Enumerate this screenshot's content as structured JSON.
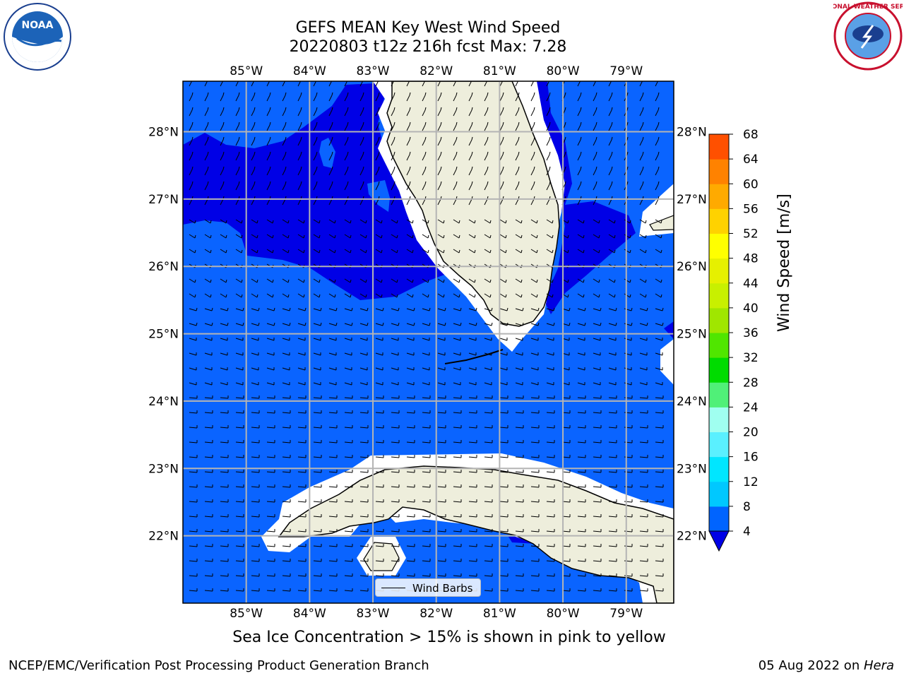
{
  "title": {
    "line1": "GEFS MEAN Key West Wind Speed",
    "line2": "20220803 t12z 216h fcst   Max: 7.28"
  },
  "logos": {
    "left": {
      "text": "NOAA",
      "icon": "noaa-logo-icon"
    },
    "right": {
      "text": "NATIONAL WEATHER SERVICE",
      "icon": "nws-logo-icon"
    }
  },
  "map": {
    "lon_labels": [
      "85°W",
      "84°W",
      "83°W",
      "82°W",
      "81°W",
      "80°W",
      "79°W"
    ],
    "lat_labels": [
      "28°N",
      "27°N",
      "26°N",
      "25°N",
      "24°N",
      "23°N",
      "22°N"
    ],
    "extent": {
      "lon": [
        -86.0,
        -78.25
      ],
      "lat": [
        21.0,
        28.75
      ]
    },
    "colors": {
      "ocean_light": "#0a64ff",
      "ocean_dark": "#0000e6",
      "land": "#eeeedc",
      "grid": "#b4b4b4"
    }
  },
  "legend": {
    "label": "Wind Barbs"
  },
  "colorbar": {
    "label": "Wind Speed [m/s]",
    "ticks": [
      "4",
      "8",
      "12",
      "16",
      "20",
      "24",
      "28",
      "32",
      "36",
      "40",
      "44",
      "48",
      "52",
      "56",
      "60",
      "64",
      "68"
    ],
    "colors": [
      "#0064ff",
      "#00c8ff",
      "#00e6ff",
      "#5af0ff",
      "#a0fff0",
      "#50f078",
      "#00dc00",
      "#50e600",
      "#a0e600",
      "#c8f000",
      "#e6f000",
      "#ffff00",
      "#ffd200",
      "#ffaa00",
      "#ff8200",
      "#ff5000",
      "#ff2800",
      "#ff0000"
    ],
    "extend_color": "#0000e6"
  },
  "note": "Sea Ice Concentration > 15% is shown in pink to yellow",
  "footer": {
    "left": "NCEP/EMC/Verification Post Processing Product Generation Branch",
    "right_date": "05 Aug 2022 on ",
    "right_host": "Hera"
  }
}
